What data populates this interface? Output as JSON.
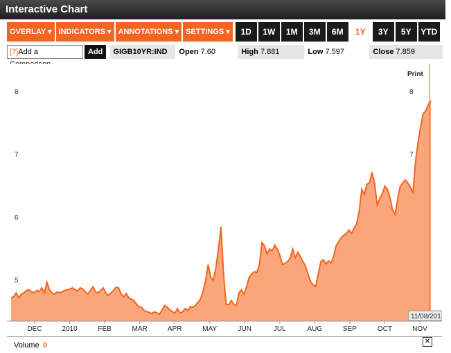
{
  "window": {
    "title": "Interactive Chart"
  },
  "toolbar": {
    "menus": [
      "OVERLAY ▾",
      "INDICATORS ▾",
      "ANNOTATIONS ▾",
      "SETTINGS ▾"
    ],
    "ranges": [
      "1D",
      "1W",
      "1M",
      "3M",
      "6M",
      "1Y",
      "3Y",
      "5Y",
      "YTD"
    ],
    "active_range": "1Y"
  },
  "compare": {
    "help": "[?]",
    "label": "Add a Comparison",
    "add_button": "Add"
  },
  "quote": {
    "ticker": "GIGB10YR:IND",
    "open_label": "Open",
    "open": "7.60",
    "high_label": "High",
    "high": "7.881",
    "low_label": "Low",
    "low": "7.597",
    "close_label": "Close",
    "close": "7.859"
  },
  "chart": {
    "print_label": "Print",
    "date_badge": "11/08/201",
    "accent": "#f26522",
    "fill": "#f9a77a"
  },
  "chart_data": {
    "type": "area",
    "x_tick_labels": [
      "DEC",
      "2010",
      "FEB",
      "MAR",
      "APR",
      "MAY",
      "JUN",
      "JUL",
      "AUG",
      "SEP",
      "OCT",
      "NOV"
    ],
    "y_tick_labels": [
      "8",
      "7",
      "6",
      "5"
    ],
    "ylim": [
      4.35,
      8.45
    ],
    "grid": false,
    "series": [
      {
        "values": [
          4.72,
          4.74,
          4.8,
          4.72,
          4.78,
          4.8,
          4.84,
          4.85,
          4.82,
          4.8,
          4.84,
          4.82,
          4.88,
          4.8,
          4.97,
          4.85,
          4.8,
          4.78,
          4.82,
          4.8,
          4.82,
          4.84,
          4.85,
          4.86,
          4.88,
          4.85,
          4.83,
          4.88,
          4.86,
          4.82,
          4.78,
          4.84,
          4.9,
          4.82,
          4.8,
          4.84,
          4.88,
          4.8,
          4.76,
          4.8,
          4.84,
          4.89,
          4.88,
          4.78,
          4.74,
          4.79,
          4.72,
          4.7,
          4.68,
          4.62,
          4.58,
          4.57,
          4.52,
          4.5,
          4.49,
          4.47,
          4.5,
          4.48,
          4.46,
          4.53,
          4.6,
          4.57,
          4.53,
          4.5,
          4.48,
          4.55,
          4.48,
          4.5,
          4.55,
          4.52,
          4.58,
          4.57,
          4.6,
          4.65,
          4.7,
          4.82,
          5.0,
          5.25,
          5.05,
          5.0,
          5.2,
          5.5,
          5.85,
          5.1,
          4.62,
          4.61,
          4.68,
          4.62,
          4.6,
          4.8,
          4.85,
          4.78,
          4.9,
          5.05,
          5.1,
          5.14,
          5.12,
          5.25,
          5.6,
          5.55,
          5.42,
          5.5,
          5.47,
          5.56,
          5.5,
          5.4,
          5.25,
          5.27,
          5.3,
          5.35,
          5.5,
          5.36,
          5.45,
          5.38,
          5.3,
          5.23,
          5.1,
          4.98,
          4.93,
          4.9,
          5.1,
          5.3,
          5.33,
          5.26,
          5.31,
          5.28,
          5.38,
          5.55,
          5.62,
          5.68,
          5.72,
          5.75,
          5.8,
          5.75,
          5.83,
          5.9,
          6.1,
          6.45,
          6.37,
          6.53,
          6.55,
          6.72,
          6.55,
          6.2,
          6.3,
          6.38,
          6.5,
          6.45,
          6.32,
          6.12,
          6.05,
          6.3,
          6.5,
          6.55,
          6.6,
          6.55,
          6.48,
          6.4,
          6.9,
          7.2,
          7.45,
          7.65,
          7.7,
          7.8,
          7.86
        ]
      }
    ]
  },
  "volume": {
    "label": "Volume",
    "value": "0",
    "close_icon": "✕"
  }
}
